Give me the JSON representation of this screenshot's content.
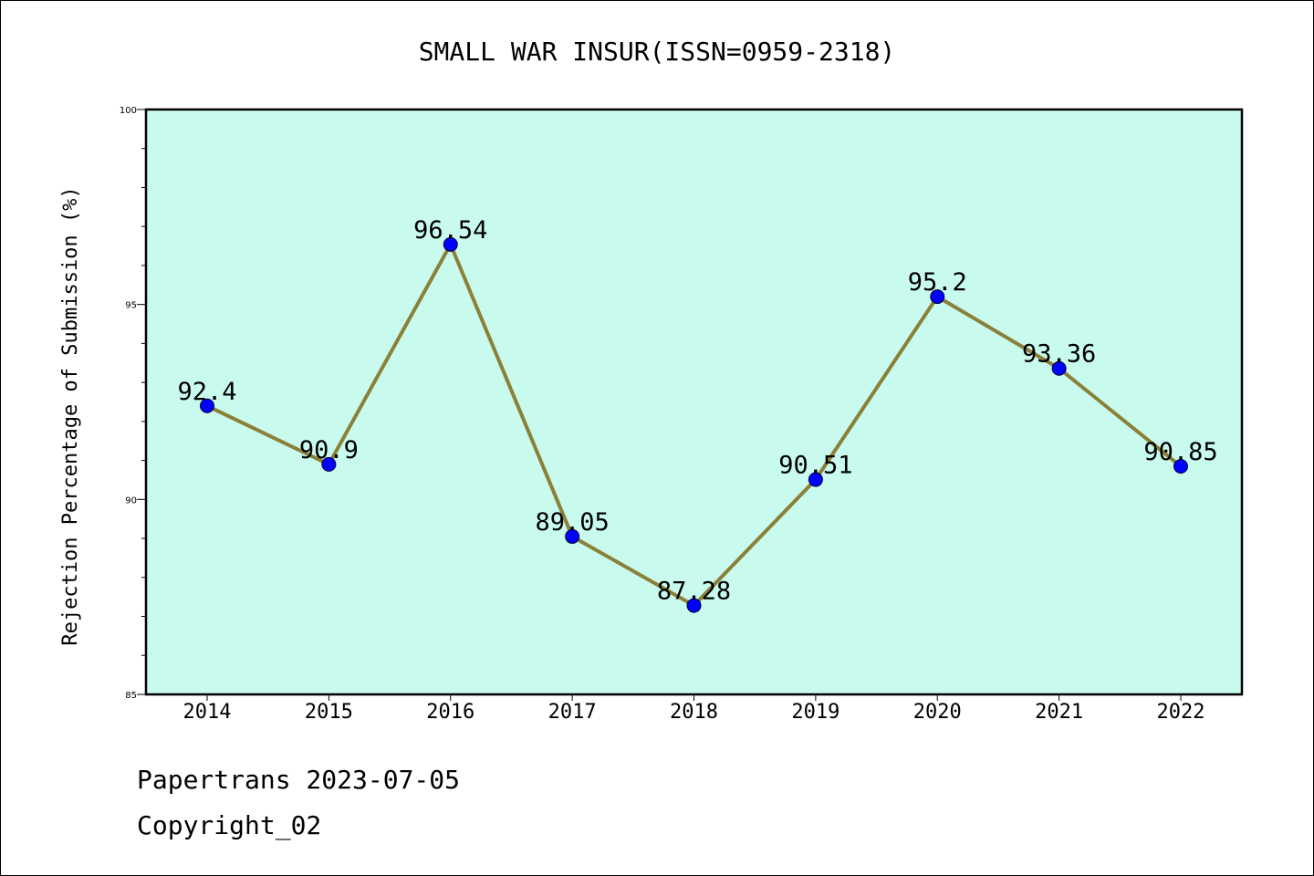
{
  "chart_data": {
    "type": "line",
    "title": "SMALL WAR INSUR(ISSN=0959-2318)",
    "xlabel": "",
    "ylabel": "Rejection Percentage of Submission (%)",
    "categories": [
      "2014",
      "2015",
      "2016",
      "2017",
      "2018",
      "2019",
      "2020",
      "2021",
      "2022"
    ],
    "values": [
      92.4,
      90.9,
      96.54,
      89.05,
      87.28,
      90.51,
      95.2,
      93.36,
      90.85
    ],
    "data_labels": [
      "92.4",
      "90.9",
      "96.54",
      "89.05",
      "87.28",
      "90.51",
      "95.2",
      "93.36",
      "90.85"
    ],
    "ylim": [
      85,
      100
    ],
    "yticks": [
      "85",
      "90",
      "95",
      "100"
    ],
    "grid": false,
    "colors": {
      "plot_background": "#c8fbee",
      "line": "#8b8038",
      "marker": "#0000ff"
    }
  },
  "footer": {
    "line1": "Papertrans 2023-07-05",
    "line2": "Copyright_02"
  }
}
